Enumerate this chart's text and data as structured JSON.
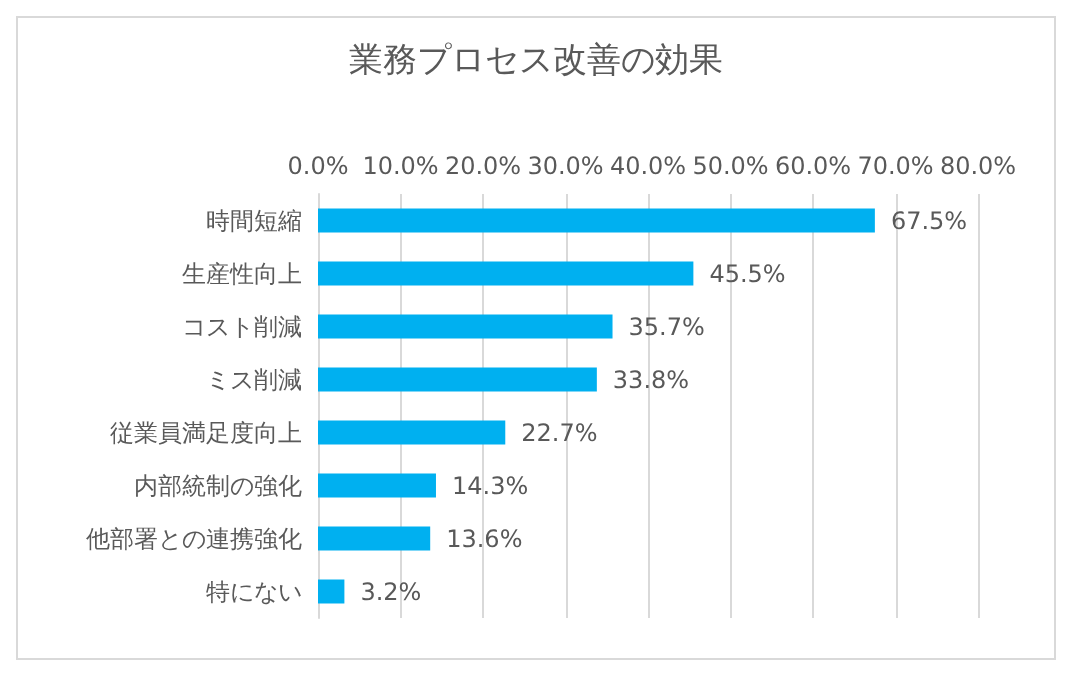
{
  "chart_data": {
    "type": "bar",
    "orientation": "horizontal",
    "title": "業務プロセス改善の効果",
    "categories": [
      "時間短縮",
      "生産性向上",
      "コスト削減",
      "ミス削減",
      "従業員満足度向上",
      "内部統制の強化",
      "他部署との連携強化",
      "特にない"
    ],
    "values": [
      67.5,
      45.5,
      35.7,
      33.8,
      22.7,
      14.3,
      13.6,
      3.2
    ],
    "value_labels": [
      "67.5%",
      "45.5%",
      "35.7%",
      "33.8%",
      "22.7%",
      "14.3%",
      "13.6%",
      "3.2%"
    ],
    "color": "#00b0f0",
    "xlim": [
      0,
      80
    ],
    "xticks": [
      {
        "value": 0,
        "label": "0.0%"
      },
      {
        "value": 10,
        "label": "10.0%"
      },
      {
        "value": 20,
        "label": "20.0%"
      },
      {
        "value": 30,
        "label": "30.0%"
      },
      {
        "value": 40,
        "label": "40.0%"
      },
      {
        "value": 50,
        "label": "50.0%"
      },
      {
        "value": 60,
        "label": "60.0%"
      },
      {
        "value": 70,
        "label": "70.0%"
      },
      {
        "value": 80,
        "label": "80.0%"
      }
    ],
    "grid": "x"
  }
}
